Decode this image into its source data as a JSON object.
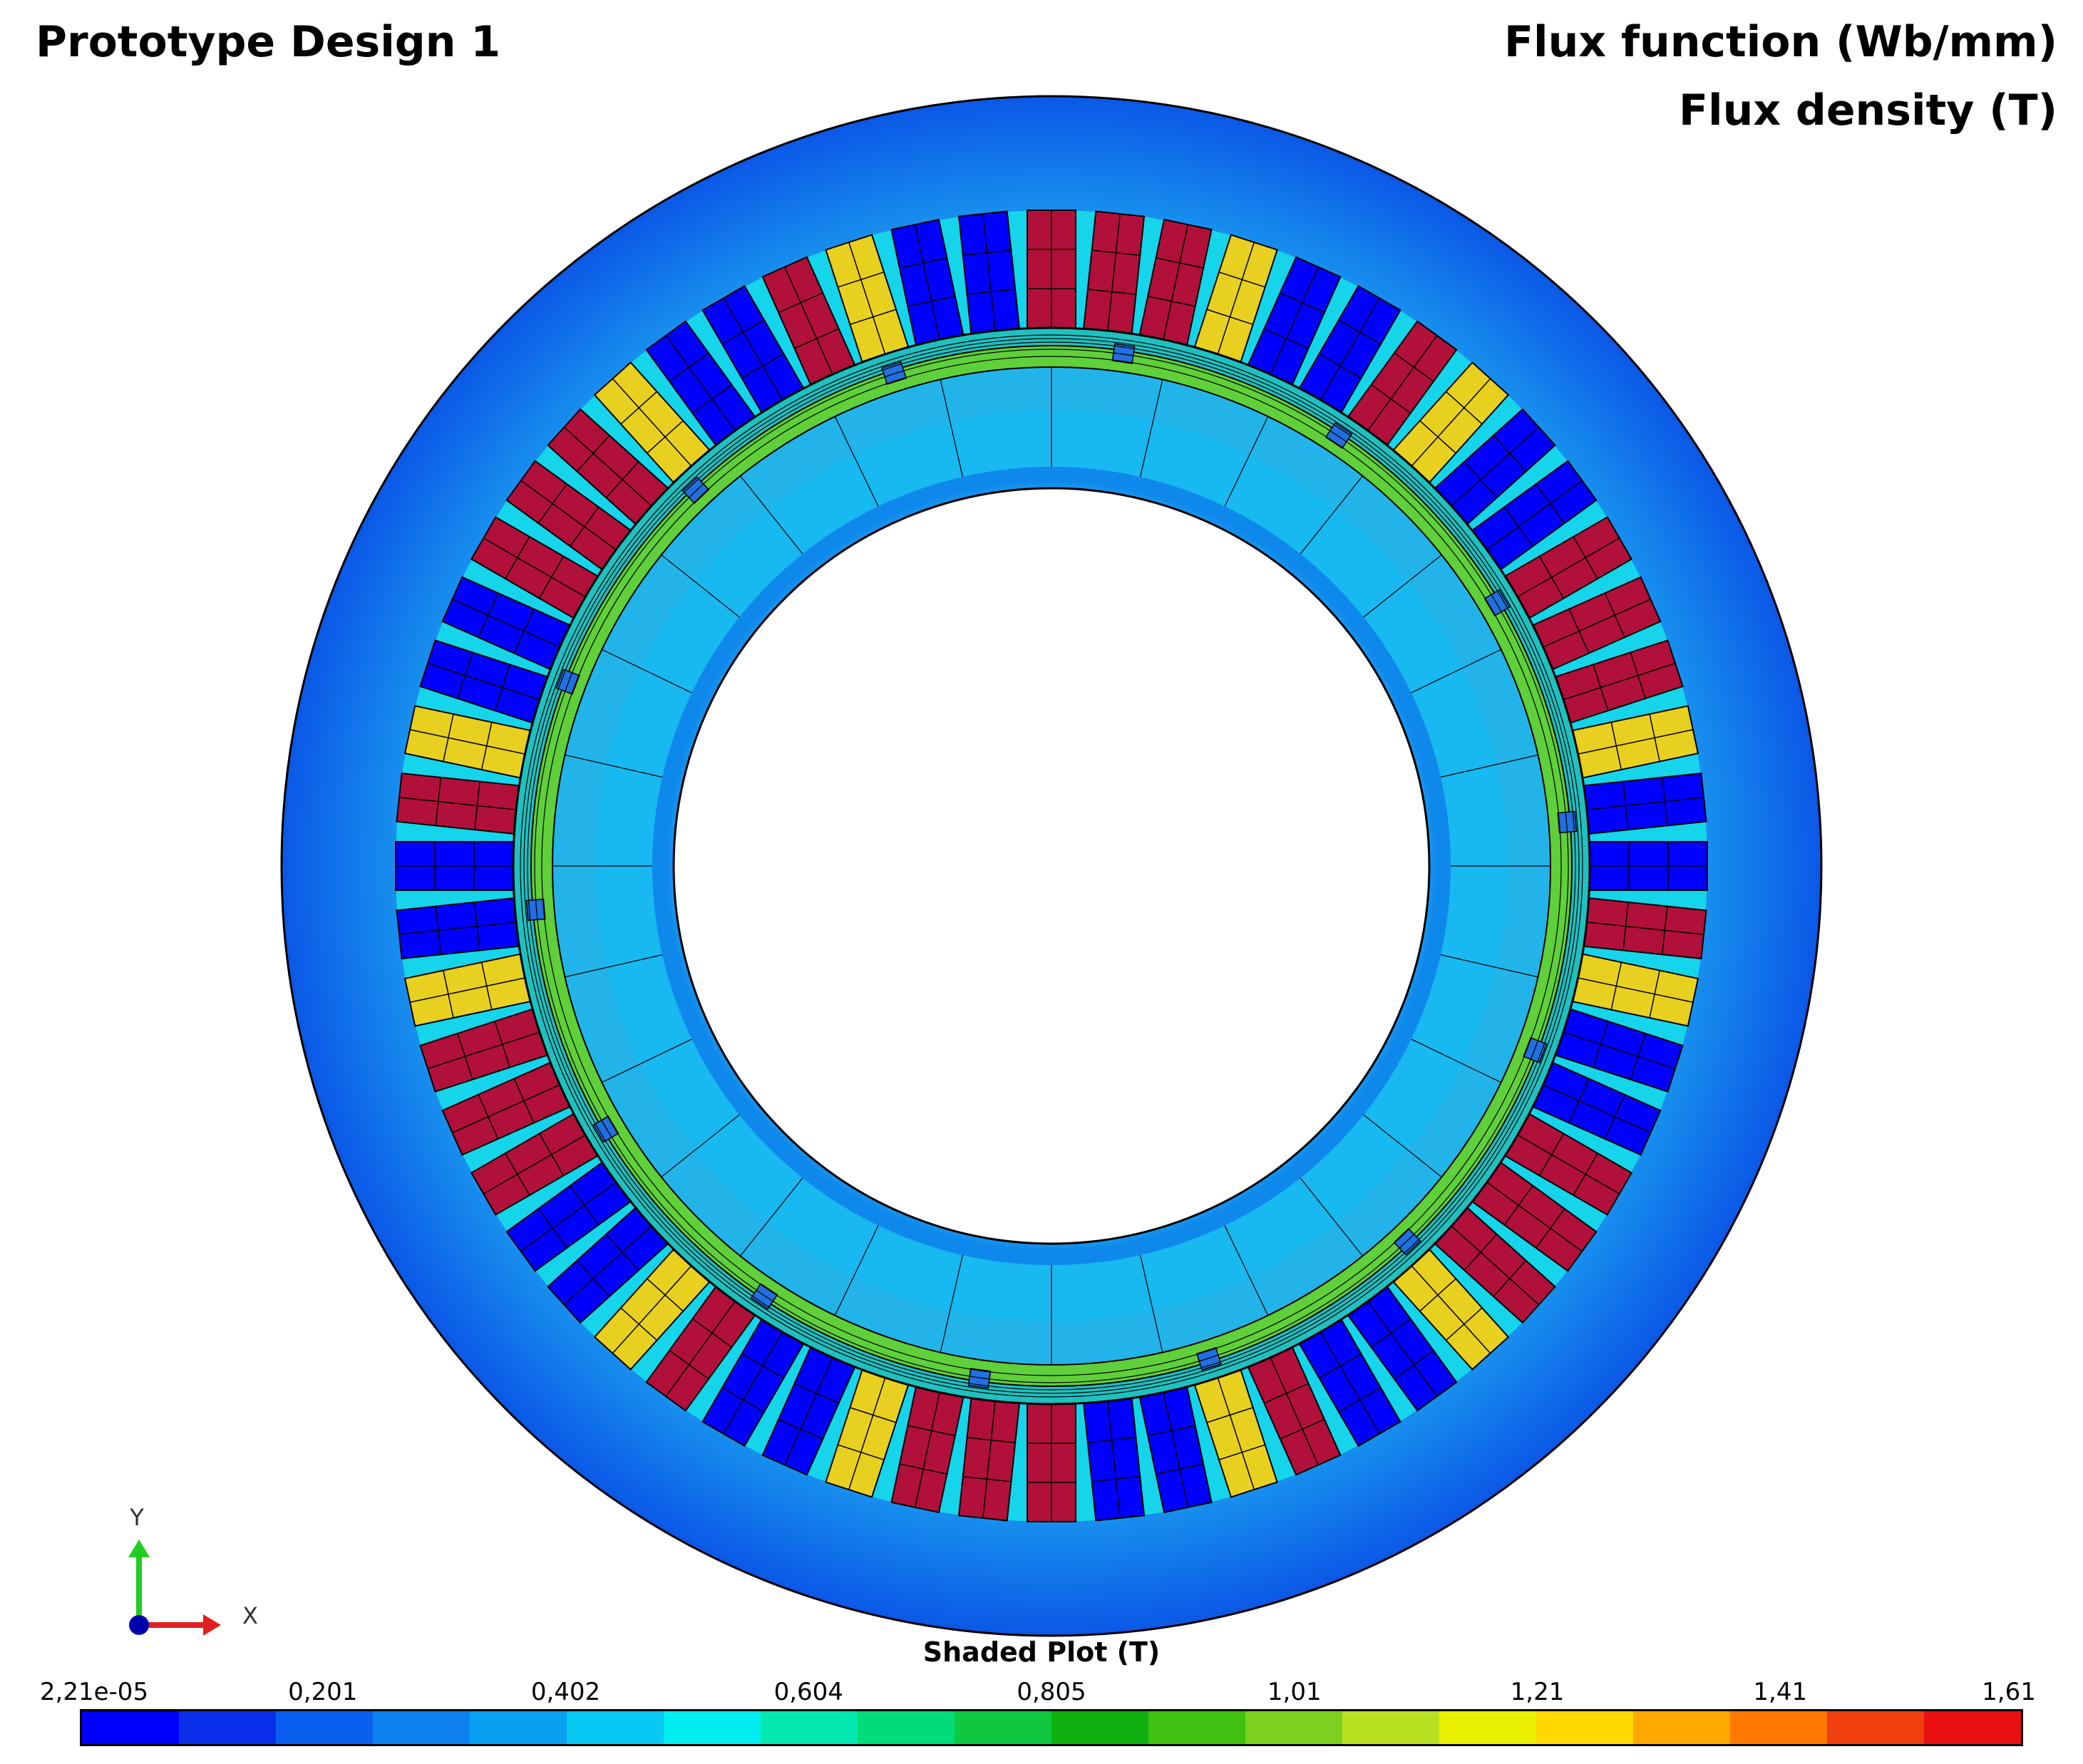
{
  "header": {
    "title_left": "Prototype Design 1",
    "title_right_1": "Flux function (Wb/mm)",
    "title_right_2": "Flux density (T)"
  },
  "legend": {
    "title": "Shaded Plot (T)",
    "ticks": [
      "2,21e-05",
      "0,201",
      "0,402",
      "0,604",
      "0,805",
      "1,01",
      "1,21",
      "1,41",
      "1,61"
    ],
    "colors": [
      "#0000ff",
      "#0a2ee8",
      "#0b5fee",
      "#0d80f0",
      "#0aa0f2",
      "#08c8f4",
      "#00eef0",
      "#00e8b0",
      "#00dc78",
      "#10c840",
      "#10b010",
      "#40c010",
      "#7cd020",
      "#b8e020",
      "#e8f000",
      "#ffd800",
      "#ffa800",
      "#ff7800",
      "#f04010",
      "#e81010"
    ]
  },
  "axes": {
    "y_label": "Y",
    "x_label": "X"
  },
  "machine": {
    "slots": 60,
    "poles": 14
  }
}
